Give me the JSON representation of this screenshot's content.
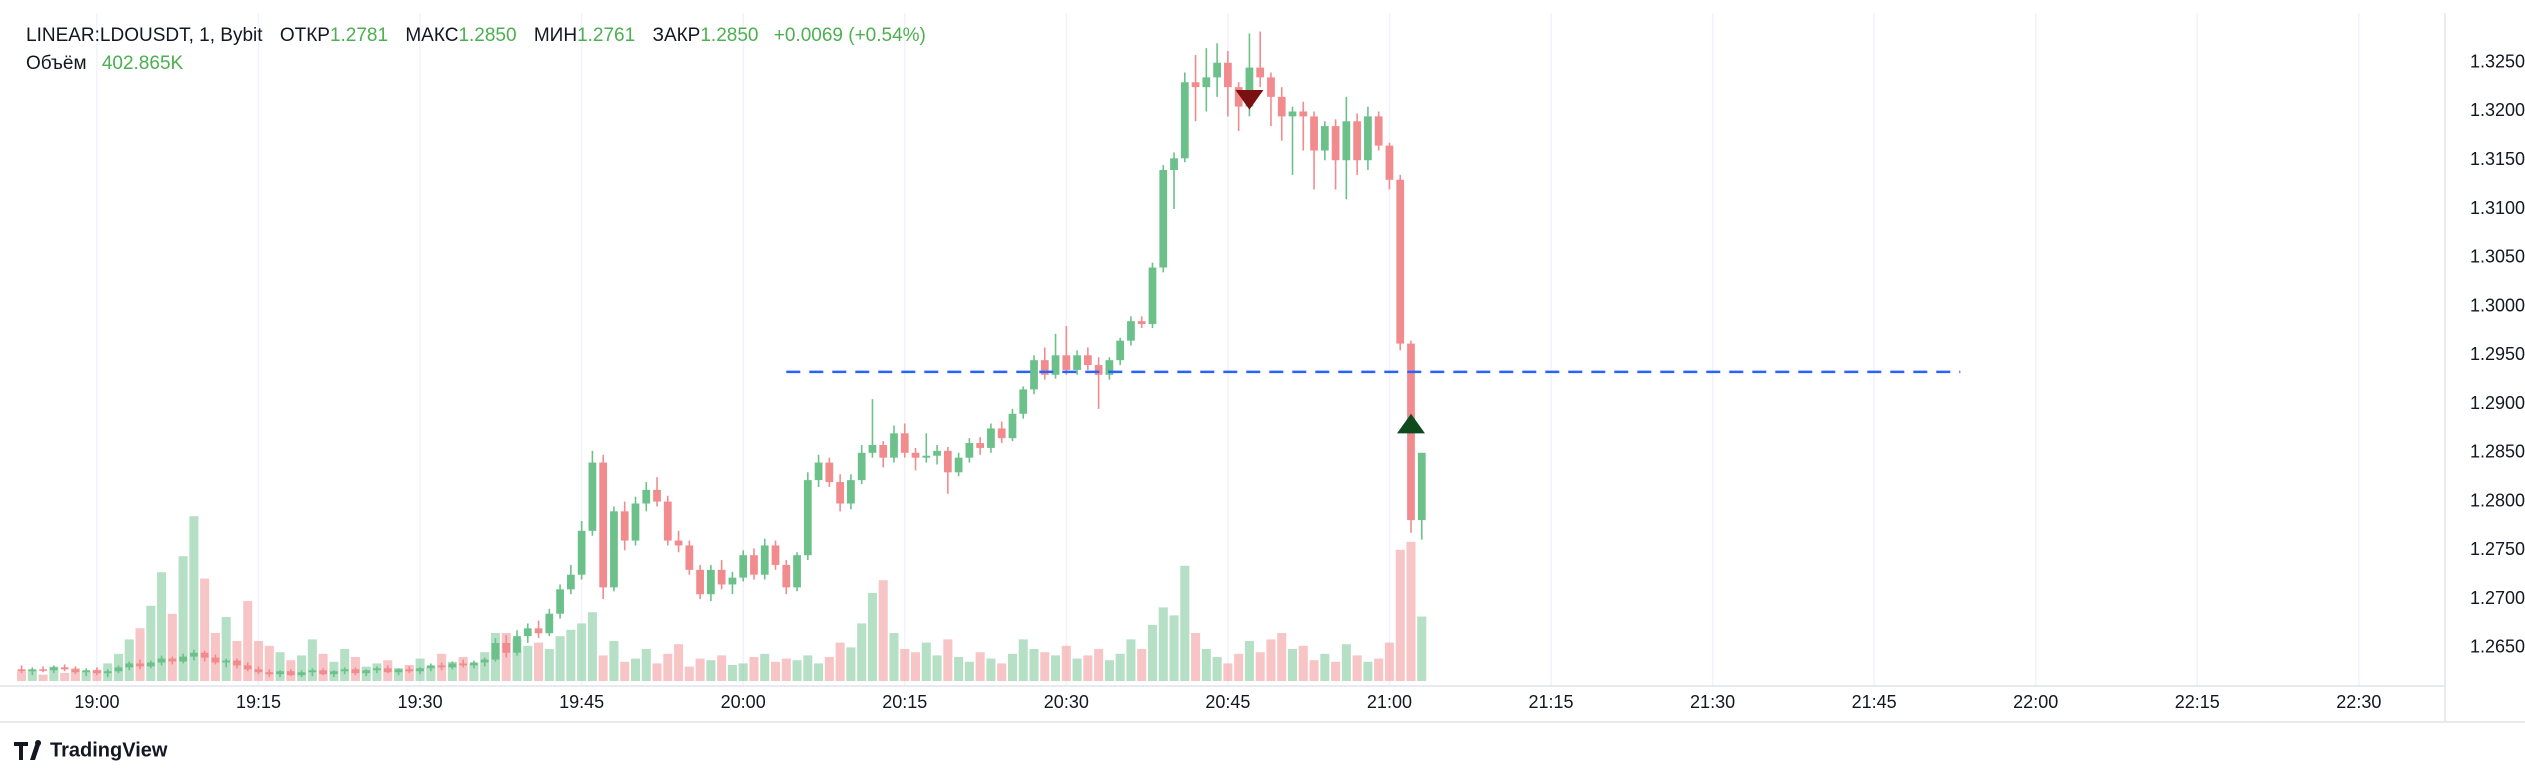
{
  "chart_data": {
    "type": "candlestick",
    "legend": {
      "symbol": "LINEAR:LDOUSDT, 1, Bybit",
      "open_label": "ОТКР",
      "open": "1.2781",
      "high_label": "МАКС",
      "high": "1.2850",
      "low_label": "МИН",
      "low": "1.2761",
      "close_label": "ЗАКР",
      "close": "1.2850",
      "change": "+0.0069 (+0.54%)",
      "volume_label": "Объём",
      "volume": "402.865K"
    },
    "branding": "TradingView",
    "up_color": "#6cc18b",
    "down_color": "#f28b8d",
    "x": [
      "18:53",
      "18:54",
      "18:55",
      "18:56",
      "18:57",
      "18:58",
      "18:59",
      "19:00",
      "19:01",
      "19:02",
      "19:03",
      "19:04",
      "19:05",
      "19:06",
      "19:07",
      "19:08",
      "19:09",
      "19:10",
      "19:11",
      "19:12",
      "19:13",
      "19:14",
      "19:15",
      "19:16",
      "19:17",
      "19:18",
      "19:19",
      "19:20",
      "19:21",
      "19:22",
      "19:23",
      "19:24",
      "19:25",
      "19:26",
      "19:27",
      "19:28",
      "19:29",
      "19:30",
      "19:31",
      "19:32",
      "19:33",
      "19:34",
      "19:35",
      "19:36",
      "19:37",
      "19:38",
      "19:39",
      "19:40",
      "19:41",
      "19:42",
      "19:43",
      "19:44",
      "19:45",
      "19:46",
      "19:47",
      "19:48",
      "19:49",
      "19:50",
      "19:51",
      "19:52",
      "19:53",
      "19:54",
      "19:55",
      "19:56",
      "19:57",
      "19:58",
      "19:59",
      "20:00",
      "20:01",
      "20:02",
      "20:03",
      "20:04",
      "20:05",
      "20:06",
      "20:07",
      "20:08",
      "20:09",
      "20:10",
      "20:11",
      "20:12",
      "20:13",
      "20:14",
      "20:15",
      "20:16",
      "20:17",
      "20:18",
      "20:19",
      "20:20",
      "20:21",
      "20:22",
      "20:23",
      "20:24",
      "20:25",
      "20:26",
      "20:27",
      "20:28",
      "20:29",
      "20:30",
      "20:31",
      "20:32",
      "20:33",
      "20:34",
      "20:35",
      "20:36",
      "20:37",
      "20:38",
      "20:39",
      "20:40",
      "20:41",
      "20:42",
      "20:43",
      "20:44",
      "20:45",
      "20:46",
      "20:47",
      "20:48",
      "20:49",
      "20:50",
      "20:51",
      "20:52",
      "20:53",
      "20:54",
      "20:55",
      "20:56",
      "20:57",
      "20:58",
      "20:59",
      "21:00",
      "21:01",
      "21:02",
      "21:03"
    ],
    "open": [
      1.2628,
      1.2626,
      1.2628,
      1.2627,
      1.263,
      1.2628,
      1.2625,
      1.2627,
      1.2624,
      1.2626,
      1.263,
      1.2634,
      1.2631,
      1.2635,
      1.2639,
      1.2636,
      1.2641,
      1.2645,
      1.264,
      1.2635,
      1.2637,
      1.2632,
      1.2628,
      1.2625,
      1.2623,
      1.2626,
      1.2622,
      1.2625,
      1.2627,
      1.2623,
      1.2626,
      1.2628,
      1.2624,
      1.2627,
      1.2629,
      1.2625,
      1.2628,
      1.2626,
      1.2629,
      1.2632,
      1.263,
      1.2634,
      1.2632,
      1.2635,
      1.2638,
      1.2655,
      1.2645,
      1.2662,
      1.267,
      1.2665,
      1.2685,
      1.271,
      1.2725,
      1.277,
      1.284,
      1.2712,
      1.279,
      1.276,
      1.2798,
      1.2812,
      1.28,
      1.276,
      1.2755,
      1.273,
      1.2705,
      1.273,
      1.2715,
      1.2722,
      1.2745,
      1.2725,
      1.2755,
      1.2735,
      1.2712,
      1.2745,
      1.2822,
      1.284,
      1.282,
      1.2798,
      1.2822,
      1.285,
      1.2858,
      1.2845,
      1.287,
      1.285,
      1.2845,
      1.2847,
      1.2852,
      1.283,
      1.2845,
      1.286,
      1.2855,
      1.2875,
      1.2865,
      1.289,
      1.2915,
      1.2945,
      1.293,
      1.295,
      1.2935,
      1.295,
      1.294,
      1.293,
      1.2945,
      1.2965,
      1.2985,
      1.2982,
      1.304,
      1.314,
      1.3152,
      1.323,
      1.3225,
      1.3235,
      1.325,
      1.3225,
      1.3205,
      1.3245,
      1.3235,
      1.3215,
      1.3195,
      1.32,
      1.3195,
      1.316,
      1.3185,
      1.315,
      1.319,
      1.315,
      1.3195,
      1.3165,
      1.313,
      1.2962,
      1.2781
    ],
    "high": [
      1.2632,
      1.263,
      1.2631,
      1.2632,
      1.2633,
      1.2631,
      1.2629,
      1.263,
      1.2628,
      1.2632,
      1.2636,
      1.2638,
      1.2637,
      1.2642,
      1.2641,
      1.2644,
      1.2648,
      1.2647,
      1.2643,
      1.2639,
      1.2639,
      1.2635,
      1.2631,
      1.2628,
      1.2627,
      1.2628,
      1.2627,
      1.2629,
      1.2629,
      1.2627,
      1.263,
      1.263,
      1.2628,
      1.2631,
      1.2632,
      1.2629,
      1.2631,
      1.263,
      1.2634,
      1.2635,
      1.2636,
      1.2638,
      1.2637,
      1.264,
      1.266,
      1.2663,
      1.2668,
      1.2675,
      1.2678,
      1.269,
      1.2715,
      1.2735,
      1.278,
      1.2852,
      1.2848,
      1.2795,
      1.28,
      1.2805,
      1.282,
      1.2825,
      1.2806,
      1.277,
      1.276,
      1.2735,
      1.2735,
      1.274,
      1.2728,
      1.275,
      1.2752,
      1.2762,
      1.276,
      1.274,
      1.2748,
      1.283,
      1.2848,
      1.2845,
      1.2828,
      1.2828,
      1.2858,
      1.2905,
      1.2862,
      1.2878,
      1.288,
      1.2855,
      1.287,
      1.2858,
      1.2856,
      1.285,
      1.2865,
      1.2866,
      1.288,
      1.2882,
      1.2895,
      1.2918,
      1.295,
      1.2958,
      1.2972,
      1.298,
      1.2955,
      1.2958,
      1.2948,
      1.2948,
      1.2968,
      1.299,
      1.299,
      1.3045,
      1.3145,
      1.3158,
      1.324,
      1.3258,
      1.3265,
      1.327,
      1.3262,
      1.323,
      1.328,
      1.3282,
      1.324,
      1.3225,
      1.3205,
      1.321,
      1.32,
      1.319,
      1.3192,
      1.3215,
      1.3198,
      1.3205,
      1.32,
      1.3168,
      1.3135,
      1.2965,
      1.285
    ],
    "low": [
      1.2624,
      1.2622,
      1.2625,
      1.2624,
      1.2626,
      1.2623,
      1.2621,
      1.2622,
      1.262,
      1.2624,
      1.2627,
      1.2628,
      1.2629,
      1.2632,
      1.2633,
      1.2634,
      1.2637,
      1.2636,
      1.2633,
      1.263,
      1.2629,
      1.2626,
      1.2623,
      1.262,
      1.262,
      1.2621,
      1.262,
      1.2621,
      1.2622,
      1.262,
      1.2623,
      1.2622,
      1.2621,
      1.2624,
      1.2624,
      1.2622,
      1.2624,
      1.2623,
      1.2626,
      1.2627,
      1.2628,
      1.263,
      1.2629,
      1.2631,
      1.2636,
      1.264,
      1.2642,
      1.2655,
      1.266,
      1.2662,
      1.268,
      1.2705,
      1.272,
      1.2765,
      1.27,
      1.2708,
      1.275,
      1.2755,
      1.279,
      1.2795,
      1.2755,
      1.2748,
      1.2725,
      1.27,
      1.2698,
      1.271,
      1.2705,
      1.2718,
      1.272,
      1.272,
      1.273,
      1.2705,
      1.2708,
      1.274,
      1.2815,
      1.2815,
      1.279,
      1.2792,
      1.2818,
      1.2845,
      1.2835,
      1.284,
      1.2845,
      1.2832,
      1.284,
      1.2838,
      1.2808,
      1.2826,
      1.284,
      1.2848,
      1.285,
      1.286,
      1.2862,
      1.2885,
      1.291,
      1.2925,
      1.2926,
      1.293,
      1.293,
      1.2935,
      1.2895,
      1.2925,
      1.294,
      1.296,
      1.2978,
      1.2978,
      1.3035,
      1.31,
      1.3148,
      1.319,
      1.32,
      1.3215,
      1.3195,
      1.318,
      1.3195,
      1.3225,
      1.3185,
      1.317,
      1.3135,
      1.316,
      1.312,
      1.315,
      1.312,
      1.311,
      1.3135,
      1.314,
      1.316,
      1.312,
      1.2955,
      1.2768,
      1.2761
    ],
    "close": [
      1.2626,
      1.2628,
      1.2627,
      1.263,
      1.2628,
      1.2625,
      1.2627,
      1.2624,
      1.2626,
      1.263,
      1.2634,
      1.2631,
      1.2635,
      1.2639,
      1.2636,
      1.2641,
      1.2645,
      1.264,
      1.2635,
      1.2637,
      1.2632,
      1.2628,
      1.2625,
      1.2623,
      1.2626,
      1.2622,
      1.2625,
      1.2627,
      1.2623,
      1.2626,
      1.2628,
      1.2624,
      1.2627,
      1.2629,
      1.2625,
      1.2628,
      1.2626,
      1.2629,
      1.2632,
      1.263,
      1.2634,
      1.2632,
      1.2635,
      1.2638,
      1.2655,
      1.2645,
      1.2662,
      1.267,
      1.2665,
      1.2685,
      1.271,
      1.2725,
      1.277,
      1.284,
      1.2712,
      1.279,
      1.276,
      1.2798,
      1.2812,
      1.28,
      1.276,
      1.2755,
      1.273,
      1.2705,
      1.273,
      1.2715,
      1.2722,
      1.2745,
      1.2725,
      1.2755,
      1.2735,
      1.2712,
      1.2745,
      1.2822,
      1.284,
      1.282,
      1.2798,
      1.2822,
      1.285,
      1.2858,
      1.2845,
      1.287,
      1.285,
      1.2845,
      1.2847,
      1.2852,
      1.283,
      1.2845,
      1.286,
      1.2855,
      1.2875,
      1.2865,
      1.289,
      1.2915,
      1.2945,
      1.293,
      1.295,
      1.2935,
      1.295,
      1.294,
      1.293,
      1.2945,
      1.2965,
      1.2985,
      1.2982,
      1.304,
      1.314,
      1.3152,
      1.323,
      1.3225,
      1.3235,
      1.325,
      1.3225,
      1.3205,
      1.3245,
      1.3235,
      1.3215,
      1.3195,
      1.32,
      1.3195,
      1.316,
      1.3185,
      1.315,
      1.319,
      1.315,
      1.3195,
      1.3165,
      1.313,
      1.2962,
      1.2781,
      1.285
    ],
    "volume": [
      60000,
      70000,
      40000,
      90000,
      50000,
      80000,
      60000,
      70000,
      110000,
      170000,
      260000,
      330000,
      470000,
      680000,
      420000,
      780000,
      1030000,
      640000,
      300000,
      400000,
      250000,
      500000,
      250000,
      220000,
      180000,
      130000,
      160000,
      260000,
      170000,
      120000,
      200000,
      150000,
      90000,
      110000,
      130000,
      80000,
      100000,
      140000,
      90000,
      170000,
      120000,
      150000,
      110000,
      180000,
      300000,
      300000,
      260000,
      220000,
      240000,
      200000,
      280000,
      320000,
      360000,
      430000,
      160000,
      250000,
      120000,
      140000,
      200000,
      110000,
      170000,
      230000,
      90000,
      140000,
      130000,
      160000,
      100000,
      110000,
      150000,
      170000,
      120000,
      140000,
      130000,
      160000,
      110000,
      150000,
      240000,
      210000,
      360000,
      550000,
      630000,
      300000,
      200000,
      180000,
      240000,
      160000,
      260000,
      150000,
      120000,
      180000,
      140000,
      110000,
      170000,
      260000,
      200000,
      180000,
      160000,
      220000,
      140000,
      160000,
      200000,
      130000,
      170000,
      260000,
      200000,
      350000,
      460000,
      410000,
      720000,
      300000,
      200000,
      150000,
      110000,
      170000,
      250000,
      180000,
      260000,
      300000,
      200000,
      220000,
      130000,
      170000,
      120000,
      230000,
      160000,
      120000,
      140000,
      240000,
      820000,
      870000,
      402865
    ],
    "volume_ylim": [
      0,
      1400000
    ],
    "xlim": [
      "18:51",
      "22:38"
    ],
    "xticks": [
      "19:00",
      "19:15",
      "19:30",
      "19:45",
      "20:00",
      "20:15",
      "20:30",
      "20:45",
      "21:00",
      "21:15",
      "21:30",
      "21:45",
      "22:00",
      "22:15",
      "22:30"
    ],
    "ylim": [
      1.2616,
      1.3301
    ],
    "yticks": [
      {
        "value": 1.265,
        "label": "1.2650"
      },
      {
        "value": 1.27,
        "label": "1.2700"
      },
      {
        "value": 1.275,
        "label": "1.2750"
      },
      {
        "value": 1.28,
        "label": "1.2800"
      },
      {
        "value": 1.285,
        "label": "1.2850"
      },
      {
        "value": 1.29,
        "label": "1.2900"
      },
      {
        "value": 1.295,
        "label": "1.2950"
      },
      {
        "value": 1.3,
        "label": "1.3000"
      },
      {
        "value": 1.305,
        "label": "1.3050"
      },
      {
        "value": 1.31,
        "label": "1.3100"
      },
      {
        "value": 1.315,
        "label": "1.3150"
      },
      {
        "value": 1.32,
        "label": "1.3200"
      },
      {
        "value": 1.325,
        "label": "1.3250"
      }
    ],
    "grid": true,
    "hline": {
      "value": 1.2933,
      "x_start": "20:04",
      "x_end": "21:53",
      "color": "#2962ff",
      "style": "dashed"
    },
    "markers": [
      {
        "x": "20:47",
        "price": 1.3212,
        "direction": "down",
        "color": "#7a1010"
      },
      {
        "x": "21:02",
        "price": 1.288,
        "direction": "up",
        "color": "#0f4a1f"
      }
    ]
  }
}
